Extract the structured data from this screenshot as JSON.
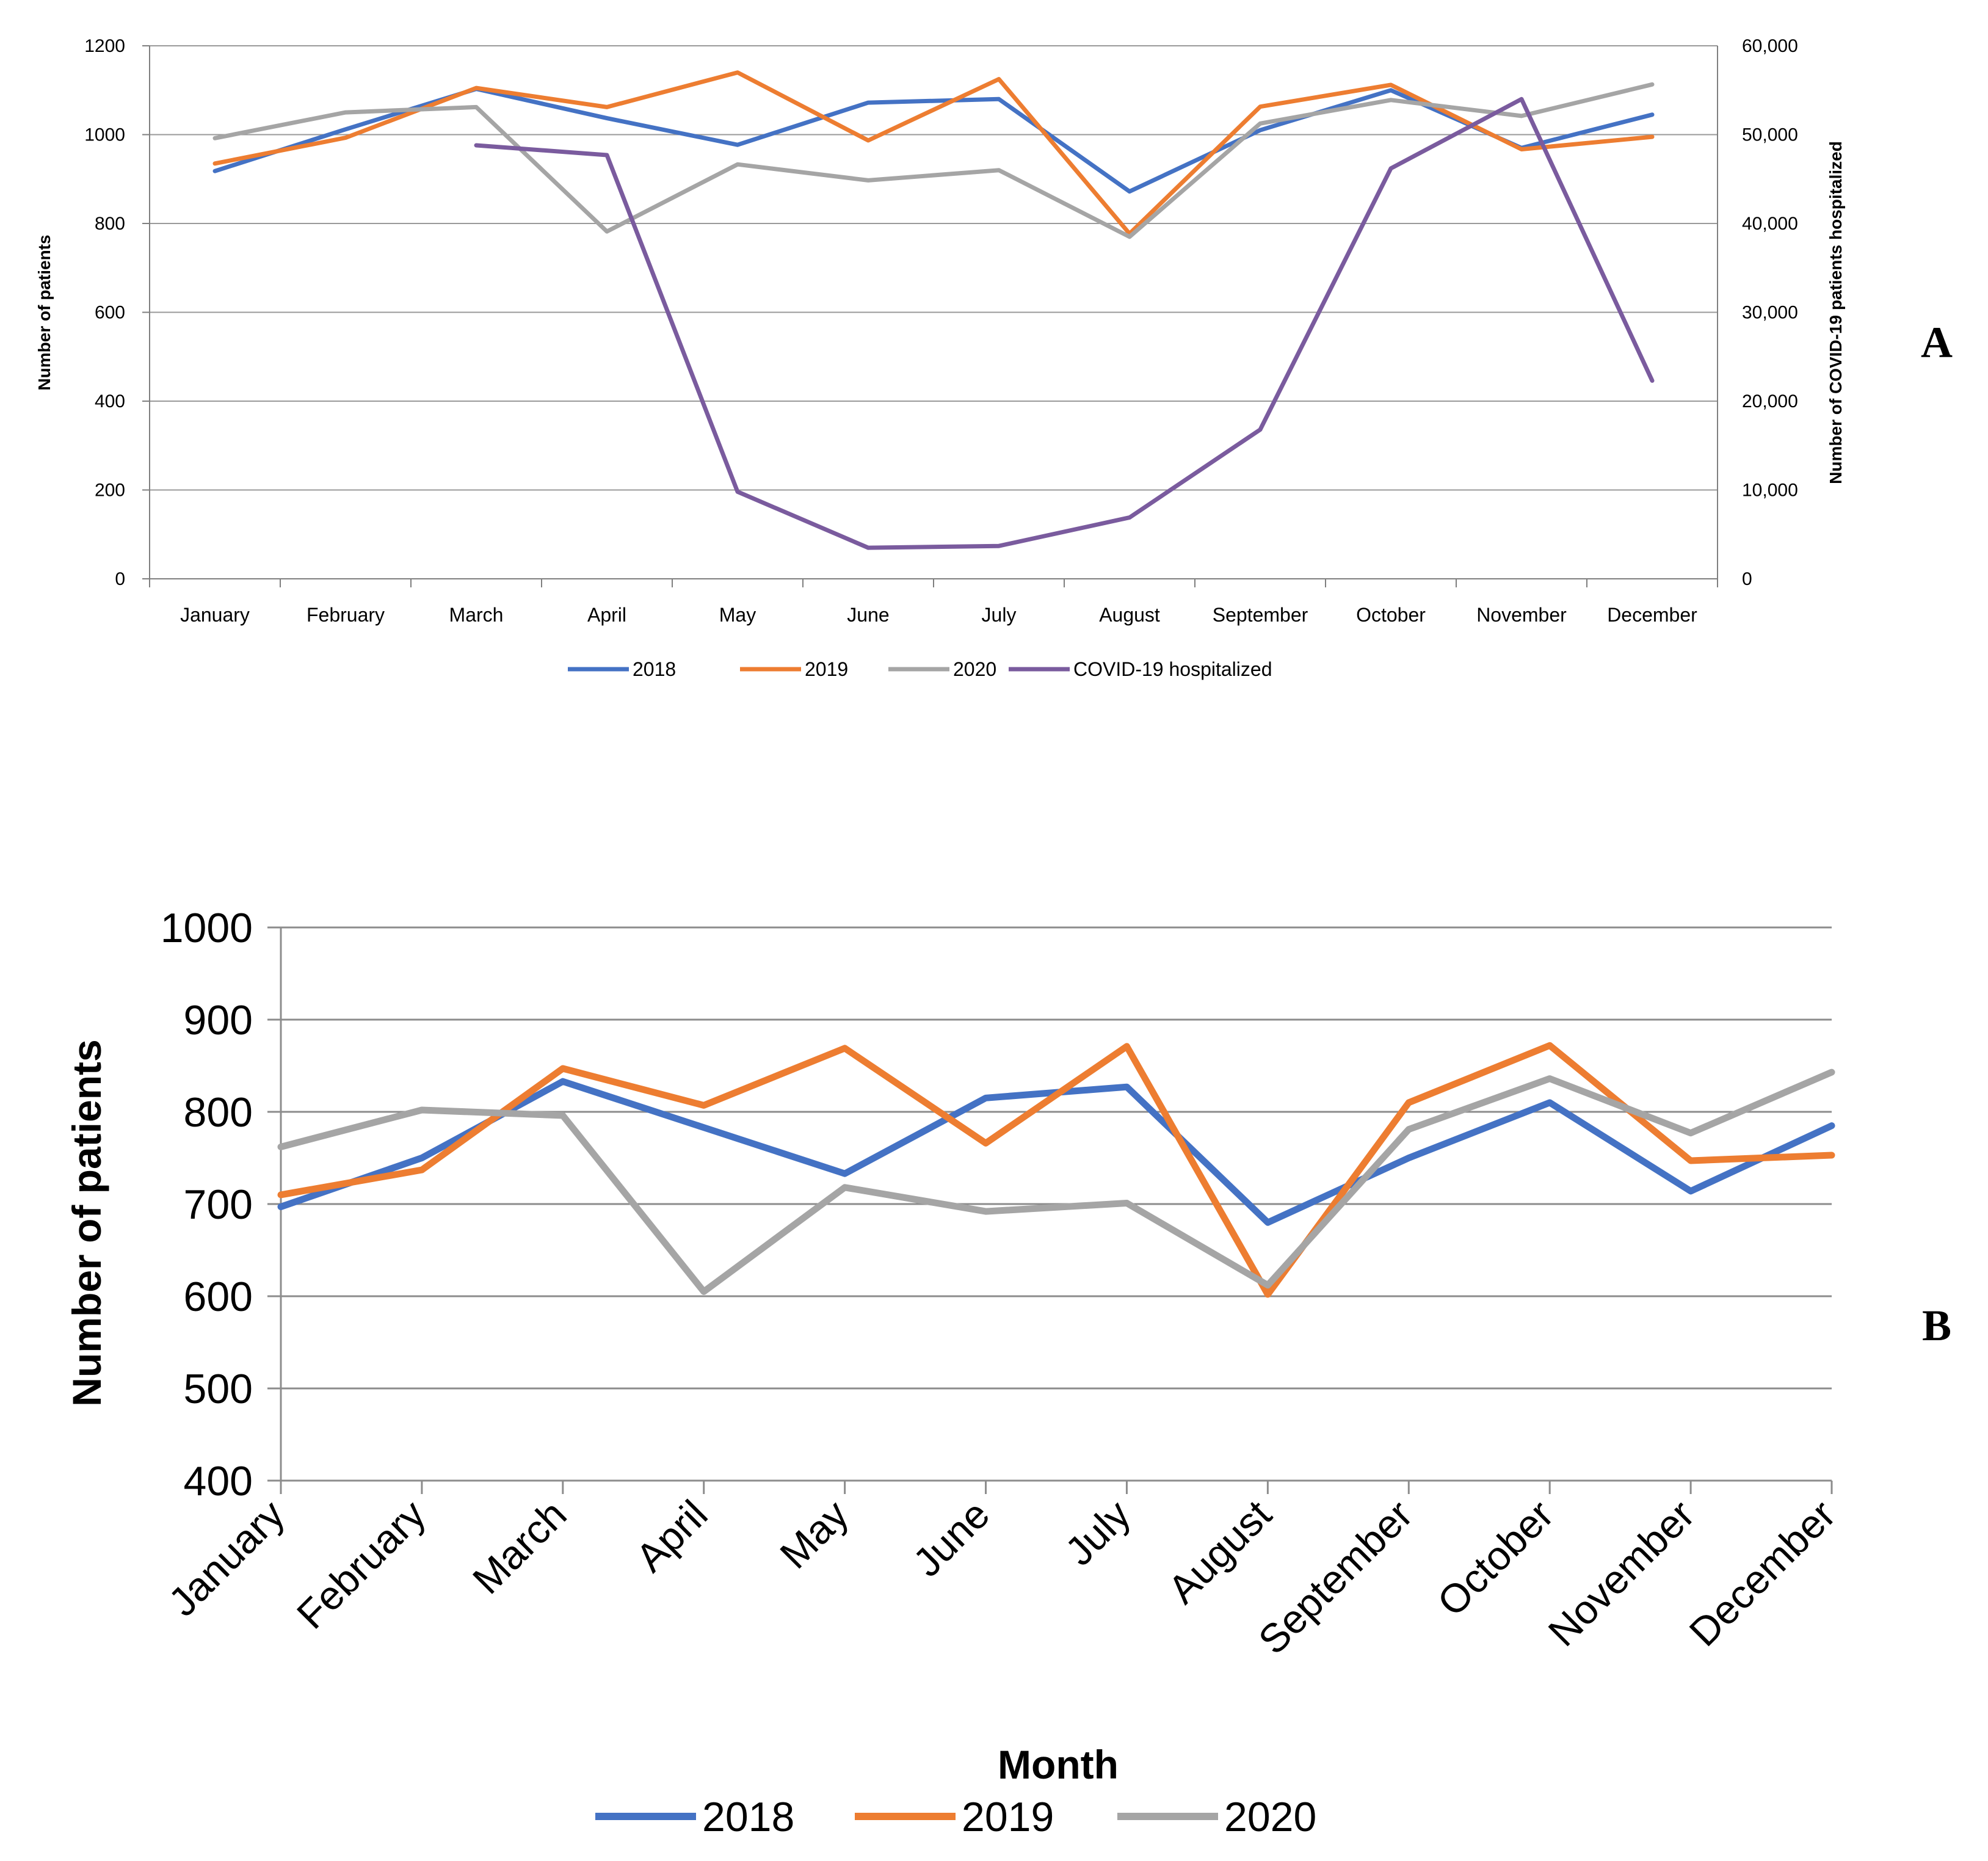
{
  "panels": [
    {
      "label": "A",
      "chart_data": {
        "type": "line",
        "categories": [
          "January",
          "February",
          "March",
          "April",
          "May",
          "June",
          "July",
          "August",
          "September",
          "October",
          "November",
          "December"
        ],
        "ylabel": "Number of patients",
        "ylabel_right": "Number of COVID-19 patients hospitalized",
        "xlabel": "",
        "ylim": [
          0,
          1200
        ],
        "yticks": [
          0,
          200,
          400,
          600,
          800,
          1000,
          1200
        ],
        "ylim_right": [
          0,
          60000
        ],
        "yticks_right": [
          "0",
          "10,000",
          "20,000",
          "30,000",
          "40,000",
          "50,000",
          "60,000"
        ],
        "grid": true,
        "legend_position": "bottom",
        "series": [
          {
            "name": "2018",
            "color": "#4472C4",
            "axis": "left",
            "values": [
              918,
              1012,
              1103,
              1037,
              977,
              1072,
              1080,
              872,
              1010,
              1100,
              970,
              1045
            ]
          },
          {
            "name": "2019",
            "color": "#ED7D31",
            "axis": "left",
            "values": [
              935,
              993,
              1105,
              1062,
              1140,
              987,
              1125,
              777,
              1063,
              1112,
              967,
              995
            ]
          },
          {
            "name": "2020",
            "color": "#A5A5A5",
            "axis": "left",
            "values": [
              992,
              1050,
              1062,
              782,
              933,
              897,
              920,
              770,
              1025,
              1078,
              1042,
              1113
            ]
          },
          {
            "name": "COVID-19 hospitalized",
            "color": "#7A5B9E",
            "axis": "right",
            "values": [
              null,
              null,
              48800,
              47700,
              9800,
              3500,
              3700,
              6900,
              16800,
              46200,
              54000,
              22300
            ]
          }
        ]
      }
    },
    {
      "label": "B",
      "chart_data": {
        "type": "line",
        "categories": [
          "January",
          "February",
          "March",
          "April",
          "May",
          "June",
          "July",
          "August",
          "September",
          "October",
          "November",
          "December"
        ],
        "xlabel": "Month",
        "ylabel": "Number of patients",
        "ylim": [
          400,
          1000
        ],
        "yticks": [
          400,
          500,
          600,
          700,
          800,
          900,
          1000
        ],
        "grid": true,
        "legend_position": "bottom",
        "series": [
          {
            "name": "2018",
            "color": "#4472C4",
            "values": [
              697,
              750,
              833,
              783,
              733,
              815,
              827,
              680,
              750,
              810,
              714,
              785
            ]
          },
          {
            "name": "2019",
            "color": "#ED7D31",
            "values": [
              710,
              737,
              847,
              807,
              869,
              766,
              871,
              602,
              810,
              872,
              747,
              753
            ]
          },
          {
            "name": "2020",
            "color": "#A5A5A5",
            "values": [
              762,
              802,
              796,
              605,
              718,
              692,
              701,
              612,
              781,
              836,
              777,
              843
            ]
          }
        ]
      }
    }
  ]
}
